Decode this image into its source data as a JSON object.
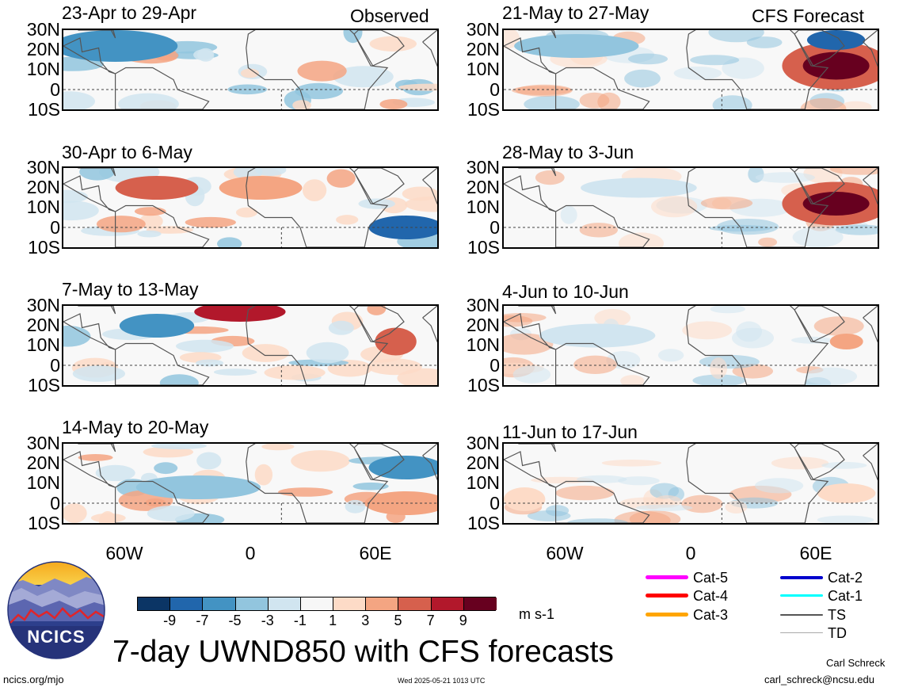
{
  "panels": [
    {
      "id": "p1",
      "title": "23-Apr to 29-Apr",
      "tag": "Observed",
      "kind": "obs",
      "seed": 3
    },
    {
      "id": "p2",
      "title": "30-Apr to 6-May",
      "tag": "",
      "kind": "obs",
      "seed": 7
    },
    {
      "id": "p3",
      "title": "7-May to 13-May",
      "tag": "",
      "kind": "obs",
      "seed": 11
    },
    {
      "id": "p4",
      "title": "14-May to 20-May",
      "tag": "",
      "kind": "obs",
      "seed": 17
    },
    {
      "id": "p5",
      "title": "21-May to 27-May",
      "tag": "CFS Forecast",
      "kind": "fc1",
      "seed": 23
    },
    {
      "id": "p6",
      "title": "28-May to 3-Jun",
      "tag": "",
      "kind": "fc2",
      "seed": 29
    },
    {
      "id": "p7",
      "title": "4-Jun to 10-Jun",
      "tag": "",
      "kind": "fc3",
      "seed": 31
    },
    {
      "id": "p8",
      "title": "11-Jun to 17-Jun",
      "tag": "",
      "kind": "fc4",
      "seed": 37
    }
  ],
  "lat_labels": [
    "30N",
    "20N",
    "10N",
    "0",
    "10S"
  ],
  "lon_labels": [
    "60W",
    "0",
    "60E"
  ],
  "colorbar": {
    "colors": [
      "#0b3565",
      "#2166ac",
      "#4393c3",
      "#92c5de",
      "#d1e5f0",
      "#f7f7f7",
      "#fddbc7",
      "#f4a582",
      "#d6604d",
      "#b2182b",
      "#67001f"
    ],
    "labels": [
      "-9",
      "-7",
      "-5",
      "-3",
      "-1",
      "1",
      "3",
      "5",
      "7",
      "9"
    ],
    "units": "m s-1"
  },
  "legend": [
    {
      "label": "Cat-5",
      "color": "#ff00ff",
      "width": 5
    },
    {
      "label": "Cat-4",
      "color": "#ff0000",
      "width": 5
    },
    {
      "label": "Cat-3",
      "color": "#ffa500",
      "width": 5
    },
    {
      "label": "Cat-2",
      "color": "#0000cd",
      "width": 4
    },
    {
      "label": "Cat-1",
      "color": "#00ffff",
      "width": 3
    },
    {
      "label": "TS",
      "color": "#555555",
      "width": 2
    },
    {
      "label": "TD",
      "color": "#aaaaaa",
      "width": 1
    }
  ],
  "logo_text": "NCICS",
  "main_title": "7-day UWND850 with CFS forecasts",
  "footer": {
    "url": "ncics.org/mjo",
    "timestamp": "Wed 2025-05-21 1013 UTC",
    "author": "Carl Schreck",
    "email": "carl_schreck@ncsu.edu"
  }
}
